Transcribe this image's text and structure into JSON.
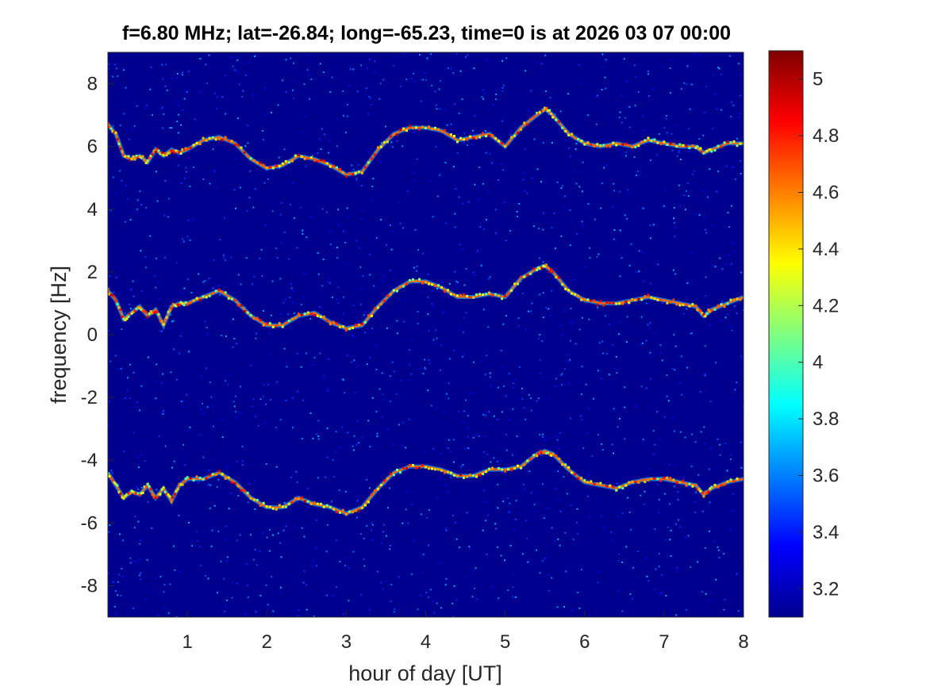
{
  "chart_data": {
    "type": "heatmap",
    "title": "f=6.80 MHz;  lat=-26.84; long=-65.23, time=0 is at 2026 03 07 00:00",
    "xlabel": "hour of day [UT]",
    "ylabel": "frequency [Hz]",
    "xlim": [
      0,
      8
    ],
    "ylim": [
      -9,
      9
    ],
    "xticks": [
      "1",
      "2",
      "3",
      "4",
      "5",
      "6",
      "7",
      "8"
    ],
    "yticks": [
      "-8",
      "-6",
      "-4",
      "-2",
      "0",
      "2",
      "4",
      "6",
      "8"
    ],
    "colorbar": {
      "colormap": "jet",
      "clim": [
        3.1,
        5.1
      ],
      "ticks": [
        "3.2",
        "3.4",
        "3.6",
        "3.8",
        "4",
        "4.2",
        "4.4",
        "4.6",
        "4.8",
        "5"
      ]
    },
    "series": [
      {
        "x": [
          0,
          0.1,
          0.2,
          0.3,
          0.4,
          0.5,
          0.6,
          0.7,
          0.8,
          0.9,
          1.0,
          1.2,
          1.4,
          1.6,
          1.8,
          2.0,
          2.2,
          2.4,
          2.6,
          2.8,
          3.0,
          3.2,
          3.4,
          3.6,
          3.8,
          4.0,
          4.2,
          4.4,
          4.6,
          4.8,
          5.0,
          5.2,
          5.4,
          5.5,
          5.6,
          5.8,
          6.0,
          6.2,
          6.4,
          6.6,
          6.8,
          7.0,
          7.2,
          7.4,
          7.5,
          7.6,
          7.8,
          8.0
        ],
        "y": [
          6.7,
          6.4,
          5.7,
          5.6,
          5.7,
          5.5,
          5.9,
          5.7,
          5.9,
          5.8,
          5.9,
          6.2,
          6.3,
          6.1,
          5.6,
          5.3,
          5.4,
          5.7,
          5.6,
          5.4,
          5.1,
          5.2,
          5.9,
          6.4,
          6.6,
          6.6,
          6.5,
          6.2,
          6.3,
          6.4,
          6.0,
          6.6,
          7.0,
          7.2,
          7.0,
          6.4,
          6.1,
          6.0,
          6.1,
          6.0,
          6.2,
          6.1,
          6.0,
          6.0,
          5.8,
          5.9,
          6.1,
          6.1
        ]
      },
      {
        "x": [
          0,
          0.1,
          0.2,
          0.3,
          0.4,
          0.5,
          0.6,
          0.7,
          0.8,
          0.9,
          1.0,
          1.2,
          1.4,
          1.6,
          1.8,
          2.0,
          2.2,
          2.4,
          2.6,
          2.8,
          3.0,
          3.2,
          3.4,
          3.6,
          3.8,
          4.0,
          4.2,
          4.4,
          4.6,
          4.8,
          5.0,
          5.2,
          5.4,
          5.5,
          5.6,
          5.8,
          6.0,
          6.2,
          6.4,
          6.6,
          6.8,
          7.0,
          7.2,
          7.4,
          7.5,
          7.6,
          7.8,
          8.0
        ],
        "y": [
          1.4,
          1.1,
          0.5,
          0.7,
          0.9,
          0.6,
          0.8,
          0.3,
          0.9,
          1.0,
          1.0,
          1.2,
          1.4,
          1.1,
          0.6,
          0.3,
          0.3,
          0.6,
          0.7,
          0.4,
          0.2,
          0.3,
          0.9,
          1.4,
          1.7,
          1.7,
          1.5,
          1.2,
          1.2,
          1.3,
          1.2,
          1.8,
          2.1,
          2.2,
          2.0,
          1.4,
          1.1,
          1.0,
          1.0,
          1.1,
          1.2,
          1.1,
          1.0,
          0.9,
          0.6,
          0.8,
          1.0,
          1.2
        ]
      },
      {
        "x": [
          0,
          0.1,
          0.2,
          0.3,
          0.4,
          0.5,
          0.6,
          0.7,
          0.8,
          0.9,
          1.0,
          1.2,
          1.4,
          1.6,
          1.8,
          2.0,
          2.2,
          2.4,
          2.6,
          2.8,
          3.0,
          3.2,
          3.4,
          3.6,
          3.8,
          4.0,
          4.2,
          4.4,
          4.6,
          4.8,
          5.0,
          5.2,
          5.4,
          5.5,
          5.6,
          5.8,
          6.0,
          6.2,
          6.4,
          6.6,
          6.8,
          7.0,
          7.2,
          7.4,
          7.5,
          7.6,
          7.8,
          8.0
        ],
        "y": [
          -4.4,
          -4.8,
          -5.2,
          -5.0,
          -5.1,
          -4.8,
          -5.2,
          -4.9,
          -5.3,
          -4.8,
          -4.6,
          -4.6,
          -4.4,
          -4.7,
          -5.2,
          -5.5,
          -5.5,
          -5.2,
          -5.4,
          -5.5,
          -5.7,
          -5.5,
          -4.9,
          -4.4,
          -4.2,
          -4.2,
          -4.3,
          -4.5,
          -4.5,
          -4.3,
          -4.3,
          -4.2,
          -3.8,
          -3.7,
          -3.8,
          -4.3,
          -4.7,
          -4.8,
          -4.9,
          -4.7,
          -4.6,
          -4.6,
          -4.7,
          -4.8,
          -5.1,
          -4.9,
          -4.7,
          -4.6
        ]
      }
    ],
    "colors": {
      "background": "#00008f",
      "text": "#262626"
    }
  }
}
